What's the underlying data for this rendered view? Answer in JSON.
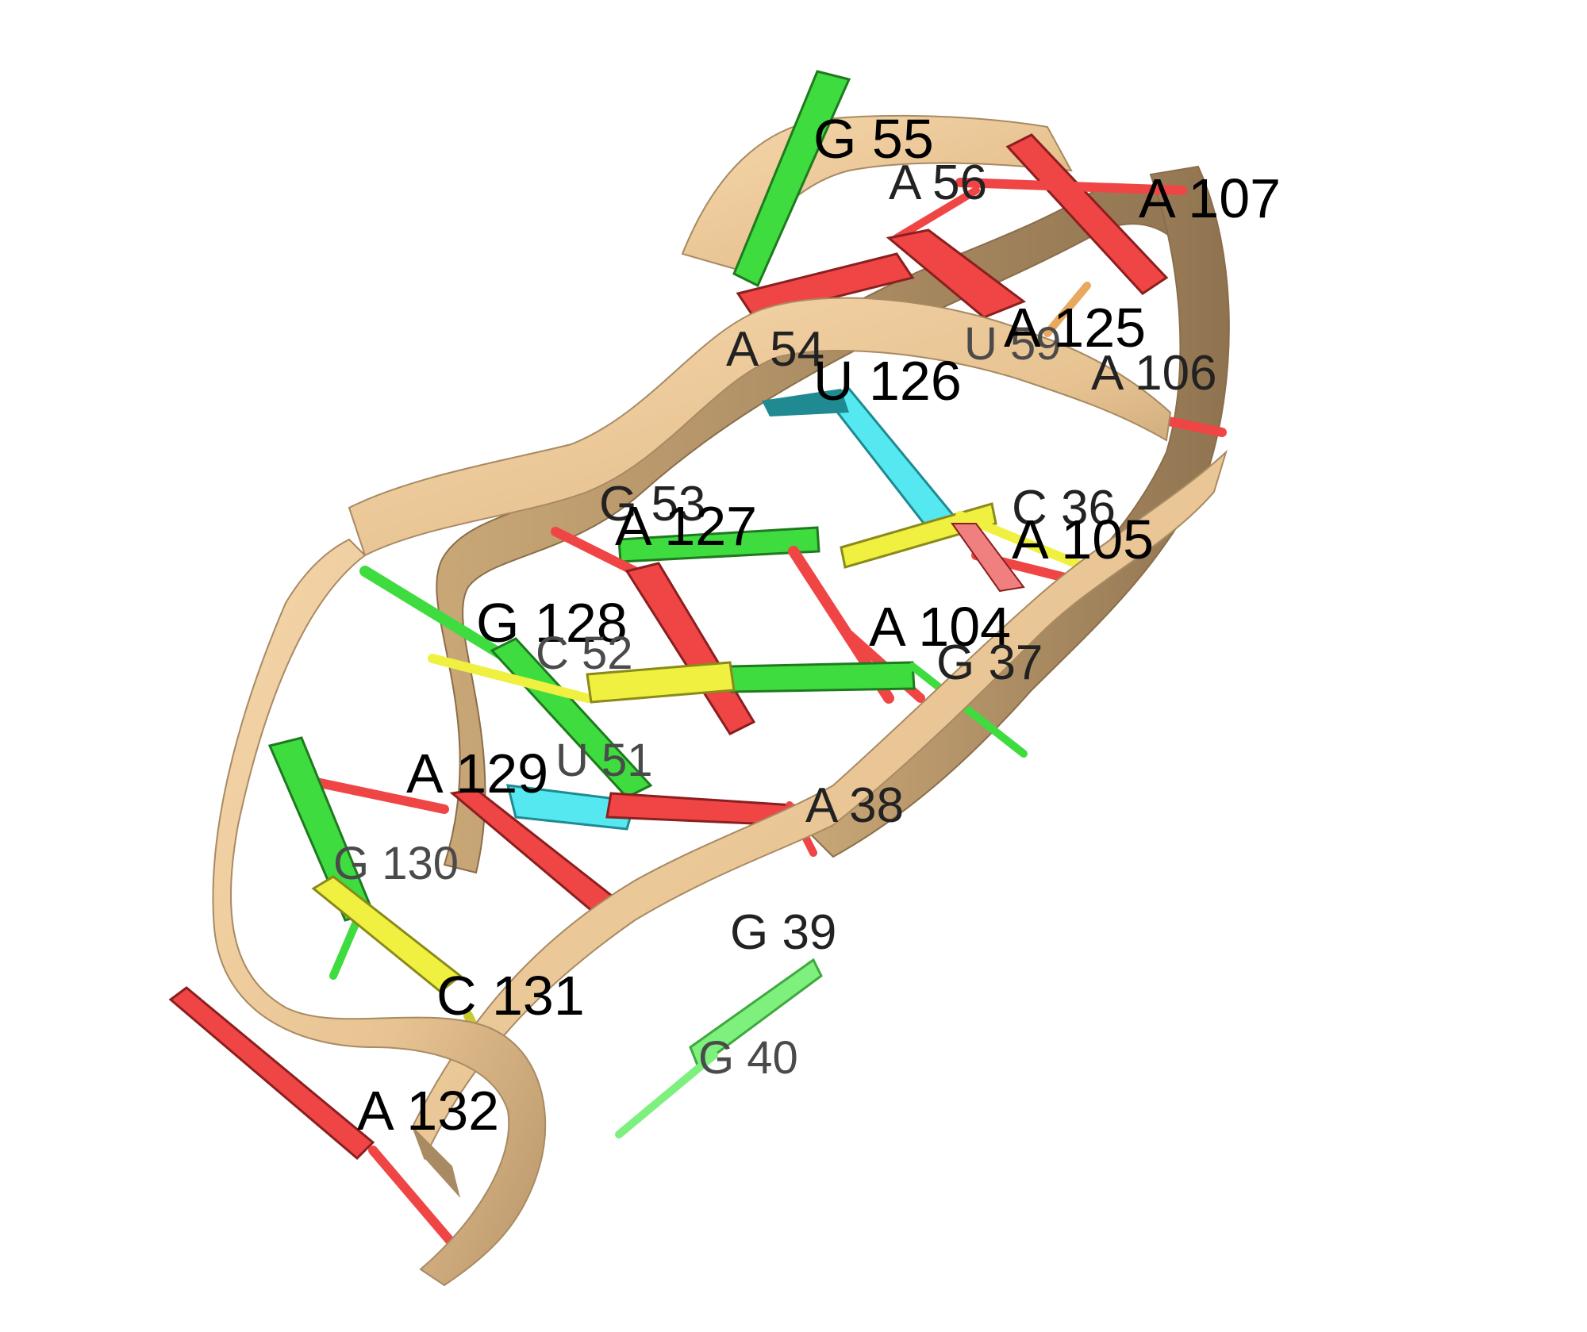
{
  "colors": {
    "backbone": "#f2cfa0",
    "backbone_shadow": "#a88a63",
    "adenine": "#f04545",
    "adenine_dark": "#8b1f1f",
    "guanine": "#3fdc3f",
    "guanine_dark": "#1f7a1f",
    "cytosine": "#f0f040",
    "cytosine_dark": "#8a8a1a",
    "uracil": "#55e8f0",
    "uracil_dark": "#1f8a92"
  },
  "labels": {
    "g55": "G 55",
    "a56": "A 56",
    "a107": "A 107",
    "a125": "A 125",
    "u59": "U 59",
    "a54": "A 54",
    "u126": "U 126",
    "a106": "A 106",
    "g53": "G 53",
    "a127": "A 127",
    "c36": "C 36",
    "a105": "A 105",
    "g128": "G 128",
    "c52": "C 52",
    "a104": "A 104",
    "g37": "G 37",
    "u51": "U 51",
    "a129": "A 129",
    "a38": "A 38",
    "g130": "G 130",
    "g39": "G 39",
    "c131": "C 131",
    "g40": "G 40",
    "a132": "A 132"
  }
}
